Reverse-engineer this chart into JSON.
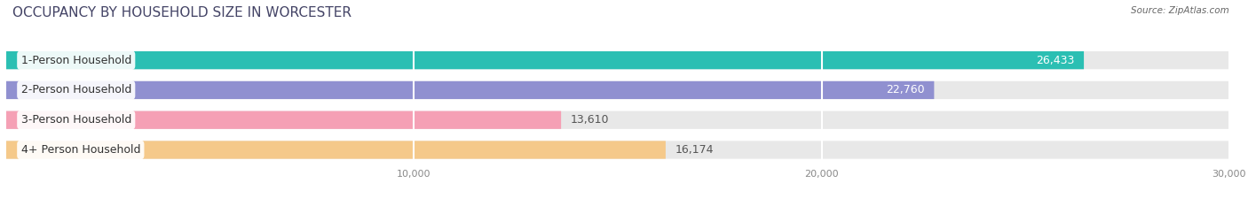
{
  "title": "OCCUPANCY BY HOUSEHOLD SIZE IN WORCESTER",
  "source": "Source: ZipAtlas.com",
  "categories": [
    "1-Person Household",
    "2-Person Household",
    "3-Person Household",
    "4+ Person Household"
  ],
  "values": [
    26433,
    22760,
    13610,
    16174
  ],
  "bar_colors": [
    "#2bbfb3",
    "#9090d0",
    "#f5a0b5",
    "#f5c98a"
  ],
  "value_inside": [
    true,
    true,
    false,
    false
  ],
  "value_colors_inside": [
    "white",
    "white",
    "#555555",
    "#555555"
  ],
  "value_labels": [
    "26,433",
    "22,760",
    "13,610",
    "16,174"
  ],
  "xlim": [
    0,
    30000
  ],
  "xticks": [
    10000,
    20000,
    30000
  ],
  "xtick_labels": [
    "10,000",
    "20,000",
    "30,000"
  ],
  "background_color": "#ffffff",
  "bar_bg_color": "#e8e8e8",
  "title_fontsize": 11,
  "label_fontsize": 9,
  "value_fontsize": 9
}
